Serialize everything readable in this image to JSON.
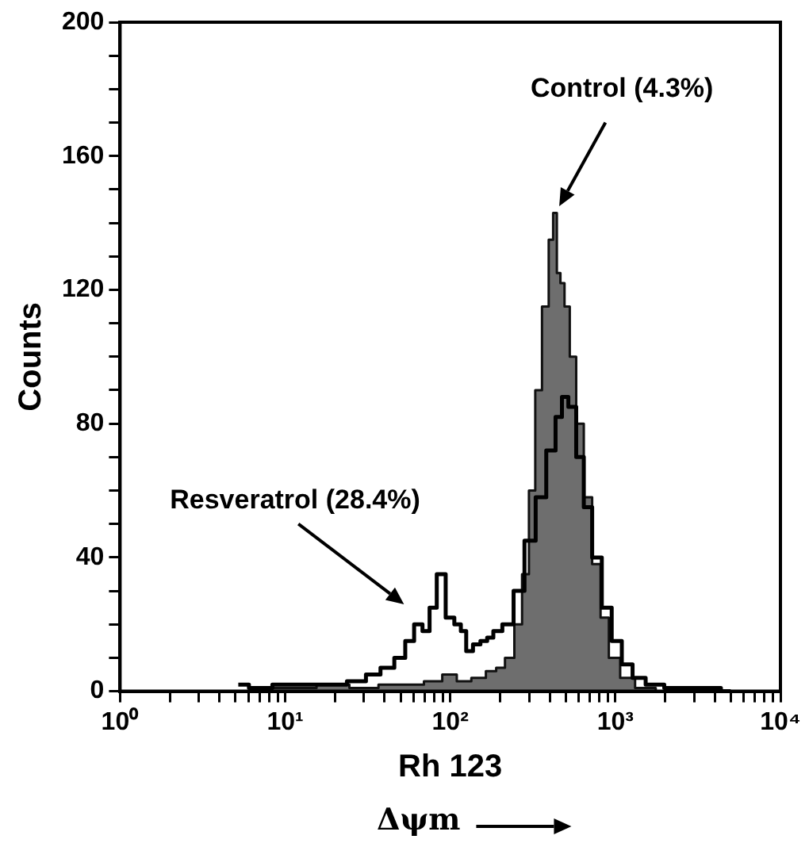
{
  "chart_data": {
    "type": "step",
    "xlabel": "Rh 123",
    "ylabel": "Counts",
    "log": "x",
    "xlim": [
      1,
      10000
    ],
    "ylim": [
      0,
      200
    ],
    "xticks": [
      {
        "value": 1,
        "label": "10⁰"
      },
      {
        "value": 2,
        "label": null
      },
      {
        "value": 3,
        "label": null
      },
      {
        "value": 4,
        "label": null
      },
      {
        "value": 5,
        "label": null
      },
      {
        "value": 6,
        "label": null
      },
      {
        "value": 7,
        "label": null
      },
      {
        "value": 8,
        "label": null
      },
      {
        "value": 9,
        "label": null
      },
      {
        "value": 10,
        "label": "10¹"
      },
      {
        "value": 20,
        "label": null
      },
      {
        "value": 30,
        "label": null
      },
      {
        "value": 40,
        "label": null
      },
      {
        "value": 50,
        "label": null
      },
      {
        "value": 60,
        "label": null
      },
      {
        "value": 70,
        "label": null
      },
      {
        "value": 80,
        "label": null
      },
      {
        "value": 90,
        "label": null
      },
      {
        "value": 100,
        "label": "10²"
      },
      {
        "value": 200,
        "label": null
      },
      {
        "value": 300,
        "label": null
      },
      {
        "value": 400,
        "label": null
      },
      {
        "value": 500,
        "label": null
      },
      {
        "value": 600,
        "label": null
      },
      {
        "value": 700,
        "label": null
      },
      {
        "value": 800,
        "label": null
      },
      {
        "value": 900,
        "label": null
      },
      {
        "value": 1000,
        "label": "10³"
      },
      {
        "value": 2000,
        "label": null
      },
      {
        "value": 3000,
        "label": null
      },
      {
        "value": 4000,
        "label": null
      },
      {
        "value": 5000,
        "label": null
      },
      {
        "value": 6000,
        "label": null
      },
      {
        "value": 7000,
        "label": null
      },
      {
        "value": 8000,
        "label": null
      },
      {
        "value": 9000,
        "label": null
      },
      {
        "value": 10000,
        "label": "10⁴"
      }
    ],
    "yticks": [
      0,
      {
        "value": 10,
        "label": null
      },
      {
        "value": 20,
        "label": null
      },
      {
        "value": 30,
        "label": null
      },
      40,
      {
        "value": 50,
        "label": null
      },
      {
        "value": 60,
        "label": null
      },
      {
        "value": 70,
        "label": null
      },
      80,
      {
        "value": 90,
        "label": null
      },
      {
        "value": 100,
        "label": null
      },
      {
        "value": 110,
        "label": null
      },
      120,
      {
        "value": 130,
        "label": null
      },
      {
        "value": 140,
        "label": null
      },
      {
        "value": 150,
        "label": null
      },
      160,
      {
        "value": 170,
        "label": null
      },
      {
        "value": 180,
        "label": null
      },
      {
        "value": 190,
        "label": null
      },
      200
    ],
    "grid": false,
    "legend": false,
    "marker": "none",
    "line_style": "solid",
    "series": [
      {
        "type": "area",
        "color": "#6e6e6e",
        "x": [
          5,
          8,
          12,
          20,
          30,
          45,
          60,
          80,
          100,
          120,
          150,
          180,
          200,
          230,
          260,
          285,
          315,
          340,
          380,
          410,
          430,
          455,
          475,
          510,
          550,
          610,
          680,
          770,
          860,
          970,
          1180,
          1470,
          2100,
          4000
        ],
        "values": [
          0,
          1,
          1,
          2,
          1,
          2,
          2,
          3,
          5,
          3,
          4,
          6,
          7,
          10,
          20,
          35,
          60,
          90,
          115,
          135,
          143,
          125,
          122,
          115,
          100,
          80,
          58,
          38,
          22,
          10,
          4,
          1,
          0,
          0
        ]
      },
      {
        "color": "#000000",
        "x": [
          5.2,
          7,
          10,
          15,
          20,
          28,
          34,
          42,
          50,
          57,
          64,
          72,
          78,
          88,
          100,
          112,
          120,
          130,
          145,
          160,
          175,
          190,
          225,
          260,
          305,
          355,
          410,
          460,
          490,
          550,
          610,
          680,
          770,
          890,
          1015,
          1180,
          1370,
          1700,
          2300,
          3800,
          5000
        ],
        "values": [
          2,
          1,
          2,
          2,
          2,
          3,
          5,
          7,
          10,
          15,
          20,
          18,
          25,
          35,
          22,
          20,
          18,
          12,
          14,
          15,
          16,
          18,
          20,
          30,
          45,
          58,
          72,
          82,
          88,
          85,
          70,
          55,
          40,
          25,
          15,
          8,
          4,
          2,
          1,
          1,
          0
        ]
      }
    ],
    "annotations": [
      "Control (4.3%)",
      "Resveratrol (28.4%)",
      "Δψm"
    ]
  }
}
